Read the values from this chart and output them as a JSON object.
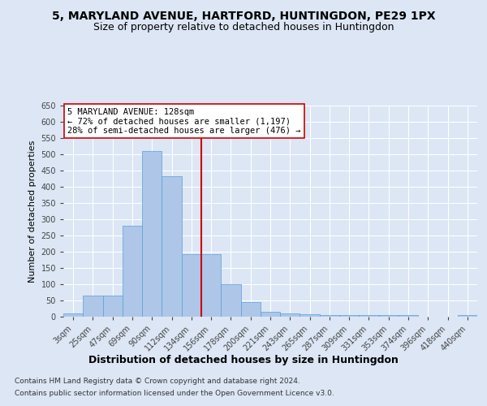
{
  "title": "5, MARYLAND AVENUE, HARTFORD, HUNTINGDON, PE29 1PX",
  "subtitle": "Size of property relative to detached houses in Huntingdon",
  "xlabel": "Distribution of detached houses by size in Huntingdon",
  "ylabel": "Number of detached properties",
  "categories": [
    "3sqm",
    "25sqm",
    "47sqm",
    "69sqm",
    "90sqm",
    "112sqm",
    "134sqm",
    "156sqm",
    "178sqm",
    "200sqm",
    "221sqm",
    "243sqm",
    "265sqm",
    "287sqm",
    "309sqm",
    "331sqm",
    "353sqm",
    "374sqm",
    "396sqm",
    "418sqm",
    "440sqm"
  ],
  "values": [
    10,
    65,
    65,
    281,
    510,
    432,
    192,
    192,
    100,
    46,
    15,
    11,
    8,
    5,
    5,
    5,
    5,
    5,
    0,
    0,
    5
  ],
  "bar_color": "#aec6e8",
  "bar_edge_color": "#5a9fd4",
  "vline_pos": 6.5,
  "vline_color": "#cc0000",
  "annotation_text": "5 MARYLAND AVENUE: 128sqm\n← 72% of detached houses are smaller (1,197)\n28% of semi-detached houses are larger (476) →",
  "annotation_box_color": "#ffffff",
  "annotation_box_edge": "#cc0000",
  "ylim": [
    0,
    650
  ],
  "yticks": [
    0,
    50,
    100,
    150,
    200,
    250,
    300,
    350,
    400,
    450,
    500,
    550,
    600,
    650
  ],
  "background_color": "#dce6f5",
  "plot_bg_color": "#dce6f5",
  "grid_color": "#ffffff",
  "footer1": "Contains HM Land Registry data © Crown copyright and database right 2024.",
  "footer2": "Contains public sector information licensed under the Open Government Licence v3.0.",
  "title_fontsize": 10,
  "subtitle_fontsize": 9,
  "xlabel_fontsize": 9,
  "ylabel_fontsize": 8,
  "tick_fontsize": 7,
  "footer_fontsize": 6.5
}
